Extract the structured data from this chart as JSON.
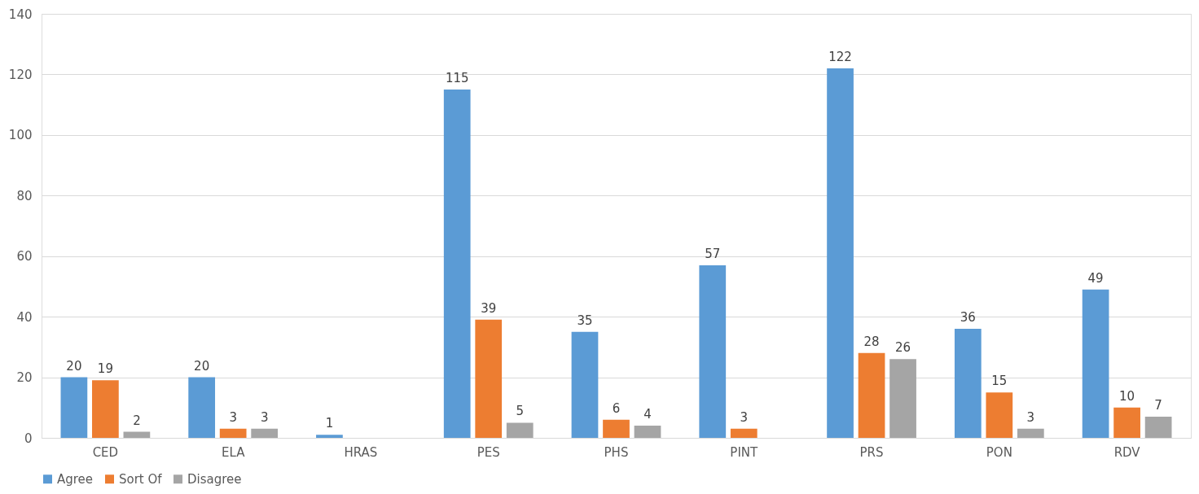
{
  "chart_data": {
    "type": "bar",
    "categories": [
      "CED",
      "ELA",
      "HRAS",
      "PES",
      "PHS",
      "PINT",
      "PRS",
      "PON",
      "RDV"
    ],
    "series": [
      {
        "name": "Agree",
        "color": "#5b9bd5",
        "values": [
          20,
          20,
          1,
          115,
          35,
          57,
          122,
          36,
          49
        ]
      },
      {
        "name": "Sort Of",
        "color": "#ed7d31",
        "values": [
          19,
          3,
          null,
          39,
          6,
          3,
          28,
          15,
          10
        ]
      },
      {
        "name": "Disagree",
        "color": "#a5a5a5",
        "values": [
          2,
          3,
          null,
          5,
          4,
          null,
          26,
          3,
          7
        ]
      }
    ],
    "ylim": [
      0,
      140
    ],
    "yticks": [
      0,
      20,
      40,
      60,
      80,
      100,
      120,
      140
    ],
    "grid": "y",
    "legend": "bottom",
    "data_labels": true
  }
}
